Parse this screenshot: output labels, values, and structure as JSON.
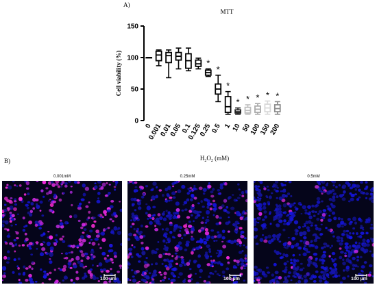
{
  "panel_a_label": "A)",
  "panel_b_label": "B)",
  "chart_data": {
    "type": "box",
    "title": "MTT",
    "ylabel": "Cell viability (%)",
    "xlabel_main": "H",
    "xlabel_sub": "2",
    "xlabel_main2": "O",
    "xlabel_sub2": "2",
    "xlabel_unit": " (mM)",
    "ylim": [
      0,
      150
    ],
    "yticks": [
      "0",
      "50",
      "100",
      "150"
    ],
    "categories": [
      "0",
      "0.001",
      "0.01",
      "0.05",
      "0.1",
      "0.125",
      "0.25",
      "0.5",
      "1",
      "10",
      "50",
      "100",
      "150",
      "200"
    ],
    "boxes": [
      {
        "min": 100,
        "q1": 100,
        "median": 100,
        "q3": 100,
        "max": 100,
        "sig": "",
        "color": "#000000"
      },
      {
        "min": 87,
        "q1": 95,
        "median": 104,
        "q3": 110,
        "max": 112,
        "sig": "",
        "color": "#000000"
      },
      {
        "min": 68,
        "q1": 92,
        "median": 103,
        "q3": 108,
        "max": 112,
        "sig": "",
        "color": "#000000"
      },
      {
        "min": 82,
        "q1": 96,
        "median": 102,
        "q3": 108,
        "max": 115,
        "sig": "",
        "color": "#000000"
      },
      {
        "min": 79,
        "q1": 83,
        "median": 95,
        "q3": 106,
        "max": 115,
        "sig": "",
        "color": "#000000"
      },
      {
        "min": 82,
        "q1": 86,
        "median": 90,
        "q3": 96,
        "max": 99,
        "sig": "",
        "color": "#000000"
      },
      {
        "min": 70,
        "q1": 72,
        "median": 76,
        "q3": 80,
        "max": 82,
        "sig": "*",
        "color": "#000000"
      },
      {
        "min": 30,
        "q1": 42,
        "median": 50,
        "q3": 58,
        "max": 72,
        "sig": "*",
        "color": "#000000"
      },
      {
        "min": 10,
        "q1": 13,
        "median": 22,
        "q3": 38,
        "max": 46,
        "sig": "*",
        "color": "#000000"
      },
      {
        "min": 10,
        "q1": 12,
        "median": 14,
        "q3": 17,
        "max": 20,
        "sig": "*",
        "color": "#222222"
      },
      {
        "min": 10,
        "q1": 12,
        "median": 16,
        "q3": 21,
        "max": 25,
        "sig": "*",
        "color": "#bdbdbd"
      },
      {
        "min": 10,
        "q1": 13,
        "median": 18,
        "q3": 23,
        "max": 27,
        "sig": "*",
        "color": "#a9a9a9"
      },
      {
        "min": 10,
        "q1": 14,
        "median": 20,
        "q3": 26,
        "max": 31,
        "sig": "*",
        "color": "#d8d8d8"
      },
      {
        "min": 10,
        "q1": 14,
        "median": 19,
        "q3": 25,
        "max": 30,
        "sig": "*",
        "color": "#8c8c8c"
      }
    ]
  },
  "images": [
    {
      "title": "0.001mM",
      "scale": "100 µm",
      "density": 0.52
    },
    {
      "title": "0.25mM",
      "scale": "100 µm",
      "density": 0.24
    },
    {
      "title": "0.5mM",
      "scale": "100 µm",
      "density": 0.05
    }
  ]
}
